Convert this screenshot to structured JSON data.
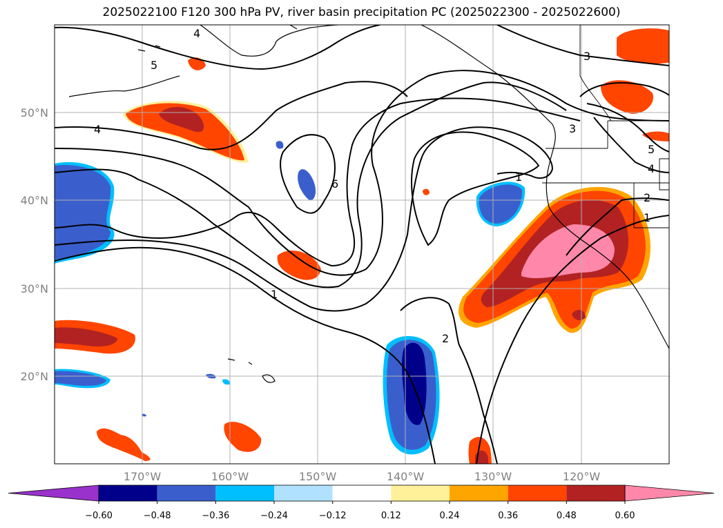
{
  "title": "2025022100 F120 300 hPa PV, river basin precipitation PC (2025022300 - 2025022600)",
  "axes": {
    "lat_ticks": [
      "50°N",
      "40°N",
      "30°N",
      "20°N"
    ],
    "lon_ticks": [
      "170°W",
      "160°W",
      "150°W",
      "140°W",
      "130°W",
      "120°W"
    ]
  },
  "colorbar": {
    "levels": [
      "−0.60",
      "−0.48",
      "−0.36",
      "−0.24",
      "−0.12",
      "0.12",
      "0.24",
      "0.36",
      "0.48",
      "0.60"
    ],
    "colors": [
      "#9932cc",
      "#00008b",
      "#3a5fcd",
      "#00bfff",
      "#b0e2ff",
      "#ffffff",
      "#fff09a",
      "#ffa500",
      "#ff4500",
      "#b22222",
      "#ff88aa"
    ]
  },
  "contour_labels": [
    "4",
    "5",
    "4",
    "6",
    "1",
    "2",
    "3",
    "3",
    "1",
    "5",
    "4",
    "2",
    "1"
  ]
}
